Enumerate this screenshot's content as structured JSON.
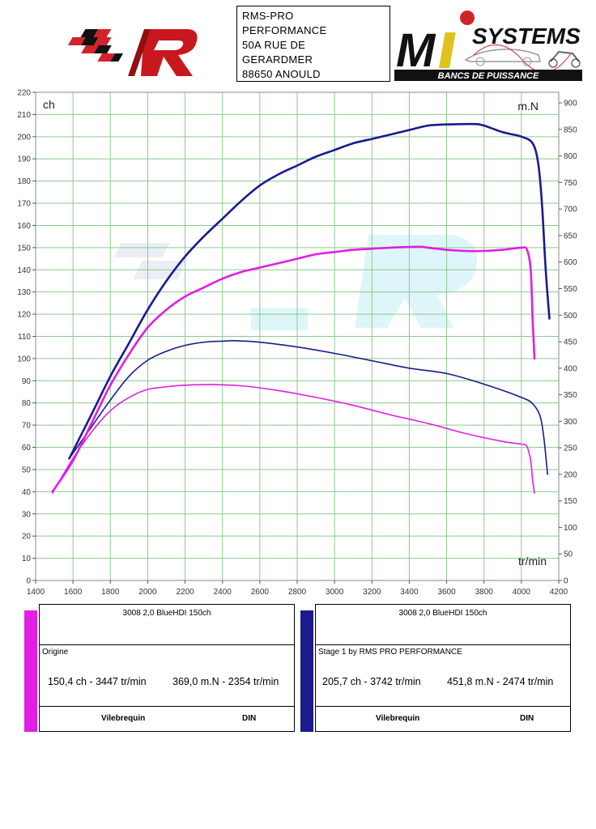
{
  "header": {
    "address_lines": [
      "RMS-PRO",
      "PERFORMANCE",
      "50A RUE DE",
      "GERARDMER",
      "88650 ANOULD"
    ],
    "logo_left_icon": "rms-logo-icon",
    "logo_right_icon": "mi-systems-logo-icon",
    "logo_right_text": "SYSTEMS",
    "logo_right_letters": "Mi",
    "logo_right_sub": "BANCS DE PUISSANCE"
  },
  "colors": {
    "stage1": "#1b1a8e",
    "origine": "#e11ee3",
    "grid": "#8dc98d"
  },
  "chart_data": {
    "type": "line",
    "x_unit_label": "tr/min",
    "y_left_label": "ch",
    "y_right_label": "m.N",
    "xlim": [
      1400,
      4200
    ],
    "x_ticks": [
      1400,
      1600,
      1800,
      2000,
      2200,
      2400,
      2600,
      2800,
      3000,
      3200,
      3400,
      3600,
      3800,
      4000,
      4200
    ],
    "ylim_left": [
      0,
      220
    ],
    "ylim_right": [
      0,
      920
    ],
    "grid": true,
    "series": [
      {
        "name": "Stage 1 by RMS PRO PERFORMANCE",
        "quantity": "power",
        "axis": "left",
        "color": "#1b1a8e",
        "points": [
          [
            1580,
            55
          ],
          [
            1700,
            75
          ],
          [
            1800,
            92
          ],
          [
            1900,
            107
          ],
          [
            2000,
            122
          ],
          [
            2100,
            135
          ],
          [
            2200,
            146
          ],
          [
            2300,
            155
          ],
          [
            2400,
            163
          ],
          [
            2500,
            171
          ],
          [
            2600,
            178
          ],
          [
            2700,
            183
          ],
          [
            2800,
            187
          ],
          [
            2900,
            191
          ],
          [
            3000,
            194
          ],
          [
            3100,
            197
          ],
          [
            3200,
            199
          ],
          [
            3300,
            201
          ],
          [
            3400,
            203
          ],
          [
            3500,
            205
          ],
          [
            3600,
            205.5
          ],
          [
            3742,
            205.7
          ],
          [
            3800,
            205
          ],
          [
            3900,
            202
          ],
          [
            4000,
            200
          ],
          [
            4060,
            197
          ],
          [
            4090,
            188
          ],
          [
            4110,
            170
          ],
          [
            4130,
            140
          ],
          [
            4150,
            118
          ]
        ]
      },
      {
        "name": "Stage 1 by RMS PRO PERFORMANCE",
        "quantity": "torque",
        "axis": "right",
        "color": "#1b1a8e",
        "points": [
          [
            1580,
            230
          ],
          [
            1700,
            290
          ],
          [
            1800,
            340
          ],
          [
            1900,
            385
          ],
          [
            2000,
            415
          ],
          [
            2100,
            432
          ],
          [
            2200,
            443
          ],
          [
            2300,
            449
          ],
          [
            2400,
            451
          ],
          [
            2474,
            451.8
          ],
          [
            2600,
            449
          ],
          [
            2800,
            440
          ],
          [
            3000,
            428
          ],
          [
            3200,
            414
          ],
          [
            3400,
            400
          ],
          [
            3600,
            390
          ],
          [
            3800,
            370
          ],
          [
            4000,
            345
          ],
          [
            4060,
            333
          ],
          [
            4100,
            310
          ],
          [
            4120,
            270
          ],
          [
            4140,
            200
          ]
        ]
      },
      {
        "name": "Origine",
        "quantity": "power",
        "axis": "left",
        "color": "#e11ee3",
        "points": [
          [
            1490,
            40
          ],
          [
            1600,
            54
          ],
          [
            1700,
            71
          ],
          [
            1800,
            88
          ],
          [
            1900,
            102
          ],
          [
            2000,
            114
          ],
          [
            2100,
            122
          ],
          [
            2200,
            128
          ],
          [
            2300,
            132
          ],
          [
            2400,
            136
          ],
          [
            2500,
            139
          ],
          [
            2600,
            141
          ],
          [
            2700,
            143
          ],
          [
            2800,
            145
          ],
          [
            2900,
            147
          ],
          [
            3000,
            148
          ],
          [
            3100,
            149
          ],
          [
            3200,
            149.5
          ],
          [
            3300,
            150
          ],
          [
            3447,
            150.4
          ],
          [
            3500,
            150
          ],
          [
            3600,
            149
          ],
          [
            3700,
            148.5
          ],
          [
            3800,
            148.5
          ],
          [
            3900,
            149
          ],
          [
            4000,
            150
          ],
          [
            4030,
            149
          ],
          [
            4050,
            140
          ],
          [
            4060,
            118
          ],
          [
            4070,
            100
          ]
        ]
      },
      {
        "name": "Origine",
        "quantity": "torque",
        "axis": "right",
        "color": "#e11ee3",
        "points": [
          [
            1490,
            165
          ],
          [
            1600,
            230
          ],
          [
            1700,
            280
          ],
          [
            1800,
            320
          ],
          [
            1900,
            345
          ],
          [
            2000,
            360
          ],
          [
            2100,
            365
          ],
          [
            2200,
            368
          ],
          [
            2354,
            369.0
          ],
          [
            2500,
            367
          ],
          [
            2700,
            358
          ],
          [
            2900,
            345
          ],
          [
            3100,
            330
          ],
          [
            3300,
            312
          ],
          [
            3500,
            296
          ],
          [
            3700,
            277
          ],
          [
            3900,
            262
          ],
          [
            4000,
            257
          ],
          [
            4030,
            252
          ],
          [
            4050,
            225
          ],
          [
            4060,
            190
          ],
          [
            4070,
            165
          ]
        ]
      }
    ]
  },
  "cards": [
    {
      "vehicle": "3008 2,0 BlueHDI 150ch",
      "name": "Origine",
      "power": "150,4 ch - 3447 tr/min",
      "torque": "369,0 m.N - 2354 tr/min",
      "col1": "Vilebrequin",
      "col2": "DIN",
      "color": "#e11ee3"
    },
    {
      "vehicle": "3008 2,0 BlueHDI 150ch",
      "name": "Stage 1 by RMS PRO PERFORMANCE",
      "power": "205,7 ch - 3742 tr/min",
      "torque": "451,8 m.N - 2474 tr/min",
      "col1": "Vilebrequin",
      "col2": "DIN",
      "color": "#1b1a8e"
    }
  ]
}
